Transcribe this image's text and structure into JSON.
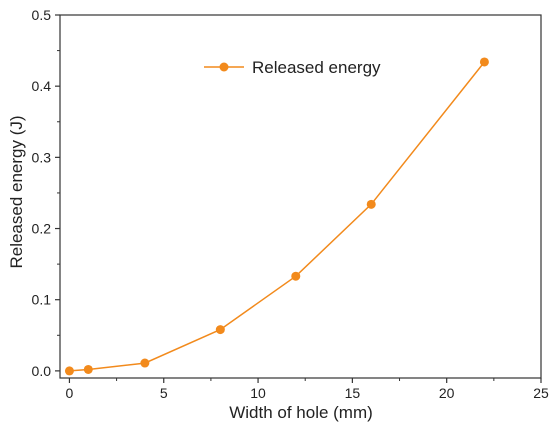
{
  "chart_data": {
    "type": "line",
    "title": "",
    "xlabel": "Width of hole (mm)",
    "ylabel": "Released energy (J)",
    "xlim": [
      -0.5,
      25
    ],
    "ylim": [
      -0.01,
      0.5
    ],
    "x_ticks": [
      0,
      5,
      10,
      15,
      20,
      25
    ],
    "y_ticks": [
      0.0,
      0.1,
      0.2,
      0.3,
      0.4,
      0.5
    ],
    "x_tick_labels": [
      "0",
      "5",
      "10",
      "15",
      "20",
      "25"
    ],
    "y_tick_labels": [
      "0.0",
      "0.1",
      "0.2",
      "0.3",
      "0.4",
      "0.5"
    ],
    "grid": false,
    "legend_position": "top-center",
    "series": [
      {
        "name": "Released energy",
        "color": "#f28a1c",
        "marker": "circle",
        "x": [
          0,
          1,
          4,
          8,
          12,
          16,
          22
        ],
        "y": [
          0.0,
          0.002,
          0.011,
          0.058,
          0.133,
          0.234,
          0.434
        ]
      }
    ]
  }
}
